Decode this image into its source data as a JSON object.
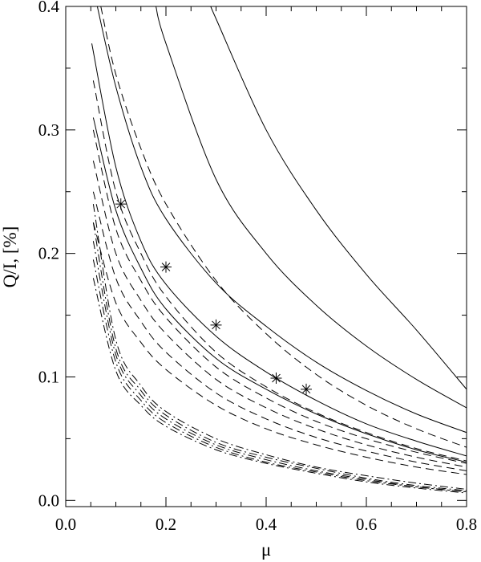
{
  "chart_data": {
    "type": "line",
    "title": "",
    "xlabel": "μ",
    "ylabel": "Q/I, [%]",
    "xlim": [
      0.0,
      0.8
    ],
    "ylim": [
      -0.005,
      0.4
    ],
    "xticks": [
      {
        "value": 0.0,
        "label": "0.0"
      },
      {
        "value": 0.2,
        "label": "0.2"
      },
      {
        "value": 0.4,
        "label": "0.4"
      },
      {
        "value": 0.6,
        "label": "0.6"
      },
      {
        "value": 0.8,
        "label": "0.8"
      }
    ],
    "yticks": [
      {
        "value": 0.0,
        "label": "0.0"
      },
      {
        "value": 0.1,
        "label": "0.1"
      },
      {
        "value": 0.2,
        "label": "0.2"
      },
      {
        "value": 0.3,
        "label": "0.3"
      },
      {
        "value": 0.4,
        "label": "0.4"
      }
    ],
    "grid": false,
    "legend": "none",
    "series": [
      {
        "style": "solid",
        "x": [
          0.052,
          0.1,
          0.15,
          0.2,
          0.3,
          0.4,
          0.5,
          0.6,
          0.7,
          0.8
        ],
        "y": [
          0.37,
          0.27,
          0.21,
          0.175,
          0.133,
          0.104,
          0.081,
          0.062,
          0.048,
          0.036
        ]
      },
      {
        "style": "solid",
        "x": [
          0.055,
          0.1,
          0.15,
          0.2,
          0.3,
          0.4,
          0.5,
          0.6,
          0.7,
          0.8
        ],
        "y": [
          0.31,
          0.235,
          0.188,
          0.155,
          0.115,
          0.09,
          0.07,
          0.054,
          0.041,
          0.031
        ]
      },
      {
        "style": "solid",
        "x": [
          0.063,
          0.1,
          0.15,
          0.2,
          0.3,
          0.4,
          0.5,
          0.6,
          0.7,
          0.8
        ],
        "y": [
          0.4,
          0.335,
          0.27,
          0.228,
          0.176,
          0.141,
          0.112,
          0.089,
          0.07,
          0.055
        ]
      },
      {
        "style": "solid",
        "x": [
          0.18,
          0.2,
          0.3,
          0.4,
          0.5,
          0.6,
          0.7,
          0.8
        ],
        "y": [
          0.4,
          0.37,
          0.26,
          0.2,
          0.158,
          0.125,
          0.098,
          0.075
        ]
      },
      {
        "style": "solid",
        "x": [
          0.29,
          0.3,
          0.4,
          0.5,
          0.6,
          0.7,
          0.8
        ],
        "y": [
          0.4,
          0.39,
          0.3,
          0.235,
          0.183,
          0.138,
          0.09
        ]
      },
      {
        "style": "dashed",
        "x": [
          0.07,
          0.1,
          0.15,
          0.2,
          0.3,
          0.4,
          0.5,
          0.6,
          0.7,
          0.8
        ],
        "y": [
          0.4,
          0.345,
          0.285,
          0.24,
          0.178,
          0.135,
          0.102,
          0.077,
          0.058,
          0.043
        ]
      },
      {
        "style": "dashed",
        "x": [
          0.055,
          0.1,
          0.15,
          0.2,
          0.3,
          0.4,
          0.5,
          0.6,
          0.7,
          0.8
        ],
        "y": [
          0.34,
          0.25,
          0.2,
          0.165,
          0.12,
          0.092,
          0.071,
          0.055,
          0.042,
          0.032
        ]
      },
      {
        "style": "dashed",
        "x": [
          0.055,
          0.1,
          0.15,
          0.2,
          0.3,
          0.4,
          0.5,
          0.6,
          0.7,
          0.8
        ],
        "y": [
          0.3,
          0.22,
          0.178,
          0.148,
          0.108,
          0.083,
          0.064,
          0.05,
          0.039,
          0.03
        ]
      },
      {
        "style": "dashed",
        "x": [
          0.055,
          0.1,
          0.15,
          0.2,
          0.3,
          0.4,
          0.5,
          0.6,
          0.7,
          0.8
        ],
        "y": [
          0.275,
          0.2,
          0.162,
          0.135,
          0.098,
          0.075,
          0.058,
          0.045,
          0.035,
          0.027
        ]
      },
      {
        "style": "dashed",
        "x": [
          0.055,
          0.1,
          0.15,
          0.2,
          0.3,
          0.4,
          0.5,
          0.6,
          0.7,
          0.8
        ],
        "y": [
          0.25,
          0.18,
          0.145,
          0.12,
          0.087,
          0.066,
          0.051,
          0.04,
          0.031,
          0.024
        ]
      },
      {
        "style": "dashed",
        "x": [
          0.055,
          0.1,
          0.15,
          0.2,
          0.3,
          0.4,
          0.5,
          0.6,
          0.7,
          0.8
        ],
        "y": [
          0.225,
          0.16,
          0.128,
          0.106,
          0.077,
          0.058,
          0.045,
          0.035,
          0.027,
          0.021
        ]
      },
      {
        "style": "dashdot",
        "x": [
          0.055,
          0.1,
          0.15,
          0.2,
          0.3,
          0.4,
          0.5,
          0.6,
          0.7,
          0.8
        ],
        "y": [
          0.24,
          0.13,
          0.093,
          0.072,
          0.05,
          0.037,
          0.027,
          0.02,
          0.014,
          0.009
        ]
      },
      {
        "style": "dashdot",
        "x": [
          0.055,
          0.1,
          0.15,
          0.2,
          0.3,
          0.4,
          0.5,
          0.6,
          0.7,
          0.8
        ],
        "y": [
          0.225,
          0.123,
          0.089,
          0.069,
          0.047,
          0.035,
          0.026,
          0.018,
          0.012,
          0.008
        ]
      },
      {
        "style": "dashdot",
        "x": [
          0.055,
          0.1,
          0.15,
          0.2,
          0.3,
          0.4,
          0.5,
          0.6,
          0.7,
          0.8
        ],
        "y": [
          0.21,
          0.118,
          0.085,
          0.066,
          0.045,
          0.033,
          0.024,
          0.017,
          0.011,
          0.007
        ]
      },
      {
        "style": "dashdot",
        "x": [
          0.055,
          0.1,
          0.15,
          0.2,
          0.3,
          0.4,
          0.5,
          0.6,
          0.7,
          0.8
        ],
        "y": [
          0.195,
          0.112,
          0.081,
          0.063,
          0.043,
          0.031,
          0.023,
          0.016,
          0.011,
          0.007
        ]
      },
      {
        "style": "dashdot",
        "x": [
          0.055,
          0.1,
          0.15,
          0.2,
          0.3,
          0.4,
          0.5,
          0.6,
          0.7,
          0.8
        ],
        "y": [
          0.18,
          0.105,
          0.077,
          0.06,
          0.041,
          0.03,
          0.022,
          0.015,
          0.01,
          0.006
        ]
      }
    ],
    "markers": {
      "symbol": "asterisk",
      "points": [
        {
          "x": 0.11,
          "y": 0.24
        },
        {
          "x": 0.2,
          "y": 0.189
        },
        {
          "x": 0.3,
          "y": 0.142
        },
        {
          "x": 0.42,
          "y": 0.099
        },
        {
          "x": 0.48,
          "y": 0.09
        }
      ]
    }
  }
}
